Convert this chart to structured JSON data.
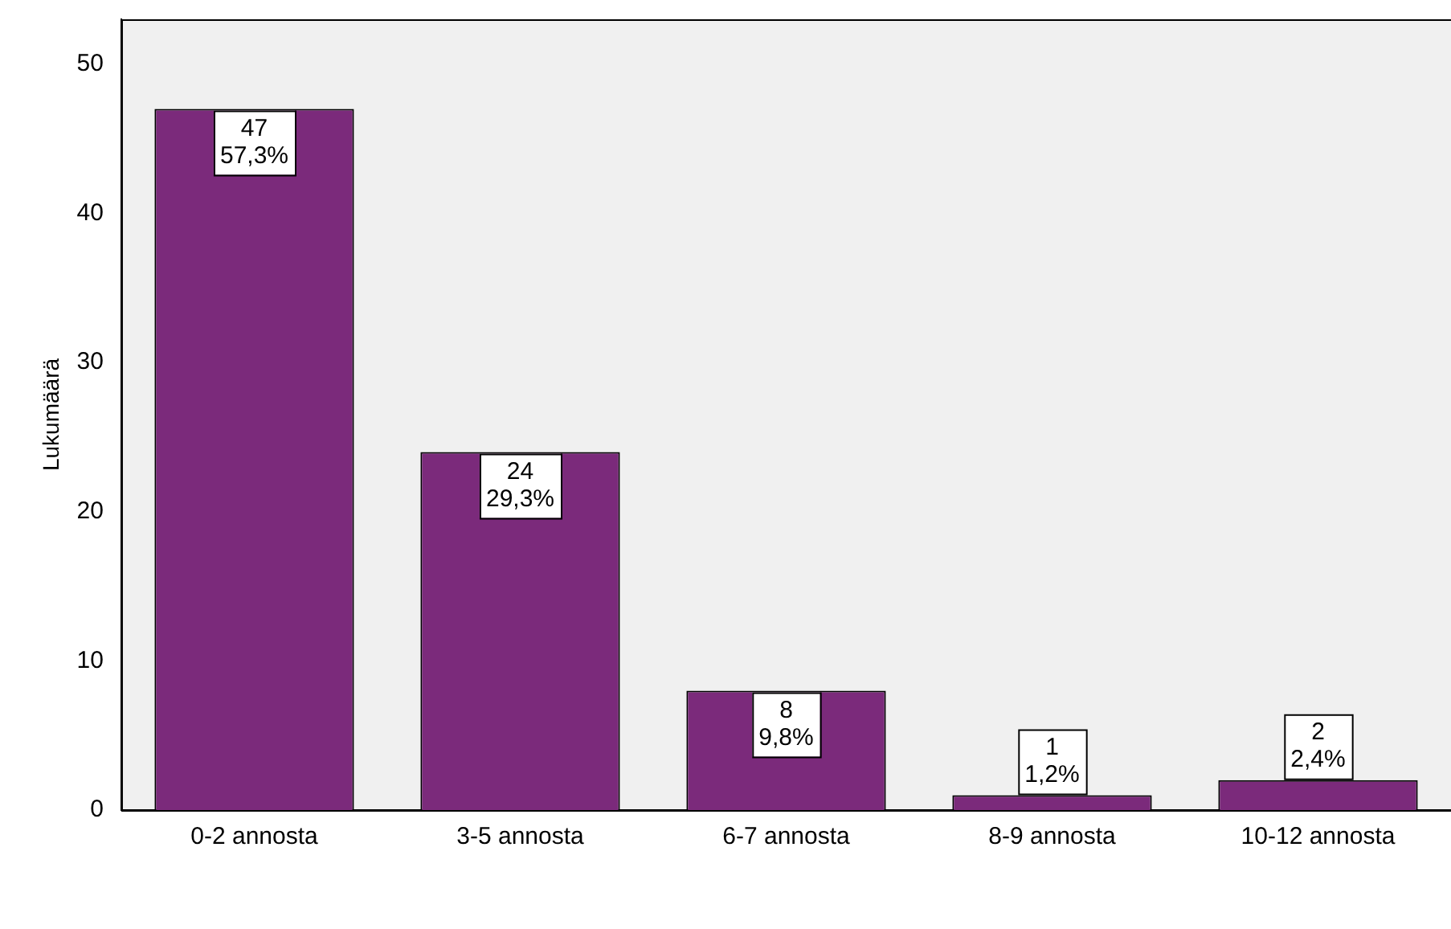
{
  "chart_data": {
    "type": "bar",
    "ylabel": "Lukumäärä",
    "categories": [
      "0-2 annosta",
      "3-5 annosta",
      "6-7 annosta",
      "8-9 annosta",
      "10-12 annosta"
    ],
    "values": [
      47,
      24,
      8,
      1,
      2
    ],
    "value_labels": [
      "47\n57,3%",
      "24\n29,3%",
      "8\n9,8%",
      "1\n1,2%",
      "2\n2,4%"
    ],
    "color": "#7b2a7b",
    "ylim": [
      0,
      53
    ],
    "yticks": [
      0,
      10,
      20,
      30,
      40,
      50
    ],
    "grid": false,
    "legend": false
  }
}
